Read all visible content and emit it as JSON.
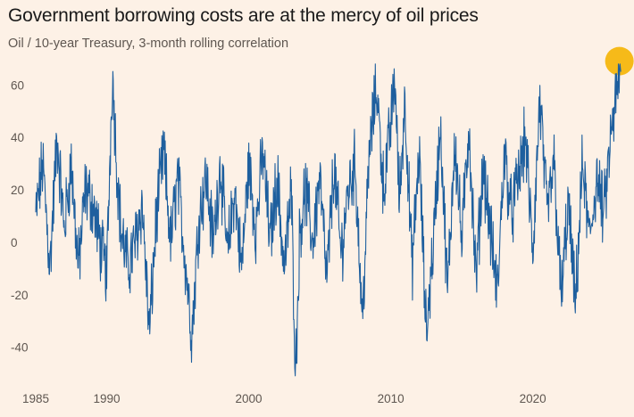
{
  "title": "Government borrowing costs are at the mercy of oil prices",
  "subtitle": "Oil / 10-year Treasury, 3-month rolling correlation",
  "colors": {
    "background": "#fdf1e6",
    "line": "#1e5f9e",
    "highlight": "#f6b60e",
    "text": "#5e5650"
  },
  "chart_data": {
    "type": "line",
    "title": "Government borrowing costs are at the mercy of oil prices",
    "subtitle": "Oil / 10-year Treasury, 3-month rolling correlation",
    "xlabel": "",
    "ylabel": "",
    "xlim": [
      1985,
      2026.5
    ],
    "ylim": [
      -52,
      72
    ],
    "x_ticks": [
      1985,
      1990,
      2000,
      2010,
      2020
    ],
    "y_ticks": [
      60,
      40,
      20,
      0,
      -20,
      -40
    ],
    "grid": false,
    "legend": "none",
    "highlight_point": {
      "x": 2026.1,
      "y": 65
    },
    "series": [
      {
        "x": [
          1985.0,
          1985.5,
          1986.0,
          1986.5,
          1987.0,
          1987.5,
          1988.0,
          1988.5,
          1989.0,
          1989.5,
          1990.0,
          1990.4,
          1990.7,
          1991.0,
          1991.5,
          1992.0,
          1992.5,
          1993.0,
          1993.5,
          1994.0,
          1994.5,
          1995.0,
          1995.5,
          1996.0,
          1996.5,
          1997.0,
          1997.5,
          1998.0,
          1998.5,
          1999.0,
          1999.5,
          2000.0,
          2000.5,
          2001.0,
          2001.5,
          2002.0,
          2002.5,
          2003.0,
          2003.3,
          2003.6,
          2004.0,
          2004.5,
          2005.0,
          2005.5,
          2006.0,
          2006.5,
          2007.0,
          2007.5,
          2008.0,
          2008.5,
          2009.0,
          2009.5,
          2010.0,
          2010.3,
          2010.6,
          2011.0,
          2011.5,
          2012.0,
          2012.5,
          2013.0,
          2013.5,
          2014.0,
          2014.5,
          2015.0,
          2015.5,
          2016.0,
          2016.5,
          2017.0,
          2017.5,
          2018.0,
          2018.5,
          2019.0,
          2019.5,
          2020.0,
          2020.5,
          2021.0,
          2021.5,
          2022.0,
          2022.5,
          2023.0,
          2023.5,
          2024.0,
          2024.5,
          2025.0,
          2025.5,
          2026.0,
          2026.2
        ],
        "values": [
          10,
          30,
          -10,
          40,
          5,
          30,
          -10,
          20,
          15,
          0,
          -12,
          65,
          30,
          5,
          -10,
          0,
          15,
          -35,
          10,
          35,
          0,
          25,
          -5,
          -35,
          10,
          25,
          0,
          30,
          -5,
          20,
          -10,
          30,
          5,
          35,
          0,
          25,
          -10,
          20,
          -50,
          5,
          20,
          0,
          25,
          -15,
          30,
          -5,
          20,
          30,
          -30,
          35,
          60,
          20,
          45,
          63,
          15,
          55,
          -10,
          35,
          -35,
          0,
          45,
          -20,
          40,
          0,
          45,
          -15,
          30,
          5,
          -20,
          35,
          10,
          25,
          40,
          -5,
          55,
          10,
          30,
          -22,
          15,
          -25,
          30,
          0,
          25,
          10,
          40,
          60,
          65
        ]
      }
    ]
  }
}
